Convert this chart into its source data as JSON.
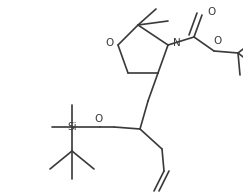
{
  "bg_color": "#ffffff",
  "line_color": "#3a3a3a",
  "lw": 1.2,
  "fig_width": 2.43,
  "fig_height": 1.95,
  "dpi": 100,
  "xlim": [
    0,
    243
  ],
  "ylim": [
    0,
    195
  ]
}
